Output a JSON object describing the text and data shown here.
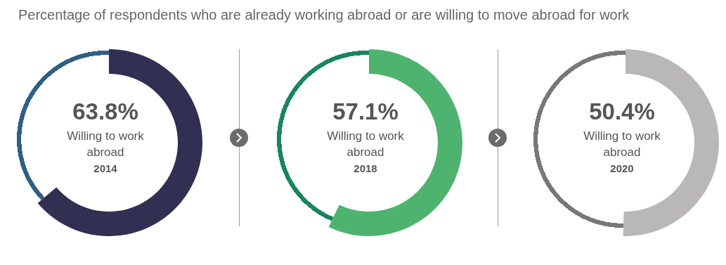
{
  "chart_data": [
    {
      "type": "donut",
      "title": "Percentage of respondents who are already working abroad or are willing to move abroad for work",
      "subtitle": "2014",
      "categories": [
        "Willing to work abroad",
        null
      ],
      "values": [
        63.8,
        36.2
      ],
      "colors": [
        "#312f52",
        "#2e5f86"
      ],
      "value_labels": [
        "63.8%",
        null
      ]
    },
    {
      "type": "donut",
      "subtitle": "2018",
      "categories": [
        "Willing to work abroad",
        null
      ],
      "values": [
        57.1,
        42.9
      ],
      "colors": [
        "#4db36e",
        "#188659"
      ],
      "value_labels": [
        "57.1%",
        null
      ]
    },
    {
      "type": "donut",
      "subtitle": "2020",
      "categories": [
        "Willing to work abroad",
        null
      ],
      "values": [
        50.4,
        49.6
      ],
      "colors": [
        "#b9b8b7",
        "#7a7778"
      ],
      "value_labels": [
        "50.4%",
        null
      ]
    }
  ]
}
